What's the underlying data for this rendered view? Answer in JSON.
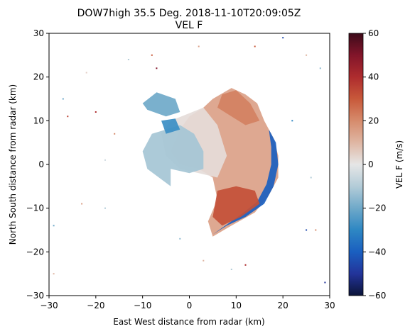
{
  "chart_data": {
    "type": "heatmap",
    "title_line1": "DOW7high 35.5 Deg. 2018-11-10T20:09:05Z",
    "title_line2": "VEL F",
    "xlabel": "East West distance from radar (km)",
    "ylabel": "North South distance from radar (km)",
    "xlim": [
      -30,
      30
    ],
    "ylim": [
      -30,
      30
    ],
    "xticks": [
      -30,
      -20,
      -10,
      0,
      10,
      20,
      30
    ],
    "yticks": [
      -30,
      -20,
      -10,
      0,
      10,
      20,
      30
    ],
    "colorbar": {
      "label": "VEL F (m/s)",
      "range": [
        -60,
        60
      ],
      "ticks": [
        -60,
        -40,
        -20,
        0,
        20,
        40,
        60
      ],
      "colormap": [
        "#0b1438",
        "#23349a",
        "#1a5fc0",
        "#2e87c3",
        "#6fa9c9",
        "#b3ccd8",
        "#e6e6e6",
        "#dfb6a3",
        "#d68b6c",
        "#c8593a",
        "#ae2c2e",
        "#82152a",
        "#3d0b1a"
      ]
    },
    "echo_description": "Radar velocity echo mass centered east of radar; mostly outbound (red) on the east and south, inbound (blue) along the eastern and southern edges and a north-west appendage.",
    "echo_regions": [
      {
        "name": "main-echo",
        "velocity": 15,
        "polygon": [
          [
            5,
            15
          ],
          [
            9,
            17.5
          ],
          [
            12,
            16
          ],
          [
            14.5,
            14
          ],
          [
            16,
            10
          ],
          [
            18,
            6
          ],
          [
            19,
            2
          ],
          [
            19,
            -3
          ],
          [
            17,
            -7
          ],
          [
            14,
            -11
          ],
          [
            9,
            -14
          ],
          [
            5,
            -16.5
          ],
          [
            4,
            -13
          ],
          [
            6,
            -8
          ],
          [
            5,
            -3
          ],
          [
            2,
            -1
          ],
          [
            -2,
            0
          ],
          [
            -4,
            3
          ],
          [
            -2,
            8
          ],
          [
            0,
            11
          ],
          [
            3,
            13
          ]
        ]
      },
      {
        "name": "central-neutral",
        "velocity": 2,
        "polygon": [
          [
            -4,
            10
          ],
          [
            3,
            13
          ],
          [
            6,
            9
          ],
          [
            8,
            2
          ],
          [
            6,
            -3
          ],
          [
            2,
            -2
          ],
          [
            -2,
            -1
          ],
          [
            -5,
            2
          ],
          [
            -6,
            7
          ]
        ]
      },
      {
        "name": "western-lobe",
        "velocity": -12,
        "polygon": [
          [
            -5,
            8
          ],
          [
            -2,
            9
          ],
          [
            1,
            7
          ],
          [
            3,
            3
          ],
          [
            3,
            -1
          ],
          [
            0,
            -2
          ],
          [
            -4,
            -1
          ],
          [
            -4,
            -5
          ],
          [
            -9,
            -1
          ],
          [
            -10,
            3
          ],
          [
            -8,
            7
          ]
        ]
      },
      {
        "name": "nw-appendage",
        "velocity": -20,
        "polygon": [
          [
            -10,
            14
          ],
          [
            -7,
            16.5
          ],
          [
            -3,
            15
          ],
          [
            -2,
            12
          ],
          [
            -5,
            11
          ],
          [
            -9,
            12.5
          ]
        ]
      },
      {
        "name": "west-strand",
        "velocity": -28,
        "polygon": [
          [
            -6,
            10
          ],
          [
            -3,
            10.5
          ],
          [
            -2,
            8
          ],
          [
            -5,
            7
          ]
        ]
      },
      {
        "name": "east-edge-inbound",
        "velocity": -40,
        "polygon": [
          [
            17,
            8
          ],
          [
            18.5,
            5
          ],
          [
            19,
            0
          ],
          [
            18,
            -5
          ],
          [
            16,
            -9
          ],
          [
            12,
            -12
          ],
          [
            8,
            -14
          ],
          [
            5,
            -16
          ],
          [
            7,
            -14.5
          ],
          [
            11,
            -11.5
          ],
          [
            14.5,
            -8.5
          ],
          [
            16.5,
            -4.5
          ],
          [
            17.5,
            0
          ],
          [
            17.5,
            4
          ]
        ]
      },
      {
        "name": "south-outbound-core",
        "velocity": 32,
        "polygon": [
          [
            6,
            -6
          ],
          [
            10,
            -5
          ],
          [
            14,
            -6
          ],
          [
            15,
            -9
          ],
          [
            11,
            -12
          ],
          [
            7,
            -14
          ],
          [
            5,
            -12
          ]
        ]
      },
      {
        "name": "north-outbound",
        "velocity": 22,
        "polygon": [
          [
            7,
            16
          ],
          [
            10,
            17
          ],
          [
            13,
            14
          ],
          [
            15,
            10
          ],
          [
            12,
            9
          ],
          [
            9,
            11
          ],
          [
            6,
            13
          ]
        ]
      }
    ],
    "scatter_echoes": [
      {
        "x": -27,
        "y": 15,
        "v": -20
      },
      {
        "x": -26,
        "y": 11,
        "v": 35
      },
      {
        "x": -22,
        "y": 21,
        "v": 5
      },
      {
        "x": -20,
        "y": 12,
        "v": 40
      },
      {
        "x": -16,
        "y": 7,
        "v": 20
      },
      {
        "x": -13,
        "y": 24,
        "v": -10
      },
      {
        "x": -8,
        "y": 25,
        "v": 30
      },
      {
        "x": -7,
        "y": 22,
        "v": 50
      },
      {
        "x": 2,
        "y": 27,
        "v": 15
      },
      {
        "x": 14,
        "y": 27,
        "v": 30
      },
      {
        "x": 20,
        "y": 29,
        "v": -45
      },
      {
        "x": 25,
        "y": 25,
        "v": 10
      },
      {
        "x": 28,
        "y": 22,
        "v": -15
      },
      {
        "x": 22,
        "y": 10,
        "v": -30
      },
      {
        "x": 26,
        "y": -3,
        "v": -10
      },
      {
        "x": 27,
        "y": -15,
        "v": 20
      },
      {
        "x": 25,
        "y": -15,
        "v": -45
      },
      {
        "x": 29,
        "y": -27,
        "v": -50
      },
      {
        "x": 12,
        "y": -23,
        "v": 40
      },
      {
        "x": 9,
        "y": -24,
        "v": -10
      },
      {
        "x": -29,
        "y": -14,
        "v": -20
      },
      {
        "x": -23,
        "y": -9,
        "v": 15
      },
      {
        "x": -18,
        "y": -10,
        "v": -10
      },
      {
        "x": -29,
        "y": -25,
        "v": 10
      },
      {
        "x": -18,
        "y": 1,
        "v": -5
      },
      {
        "x": -2,
        "y": -17,
        "v": -15
      },
      {
        "x": 3,
        "y": -22,
        "v": 10
      }
    ]
  }
}
